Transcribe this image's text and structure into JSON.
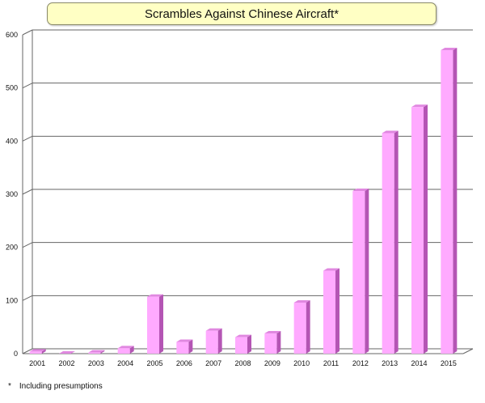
{
  "chart_data": {
    "type": "bar",
    "title": "Scrambles Against Chinese Aircraft*",
    "xlabel": "",
    "ylabel": "",
    "categories": [
      "2001",
      "2002",
      "2003",
      "2004",
      "2005",
      "2006",
      "2007",
      "2008",
      "2009",
      "2010",
      "2011",
      "2012",
      "2013",
      "2014",
      "2015"
    ],
    "values": [
      4,
      0,
      2,
      10,
      107,
      22,
      43,
      31,
      38,
      96,
      156,
      306,
      415,
      464,
      571
    ],
    "ylim": [
      0,
      600
    ],
    "yticks": [
      0,
      100,
      200,
      300,
      400,
      500,
      600
    ],
    "grid": true,
    "legend": "none",
    "footnote": "*　Including presumptions",
    "colors": {
      "bar_front": "#ffaaff",
      "bar_side": "#b455b4",
      "bar_top": "#e088e0",
      "grid": "#666666"
    }
  }
}
